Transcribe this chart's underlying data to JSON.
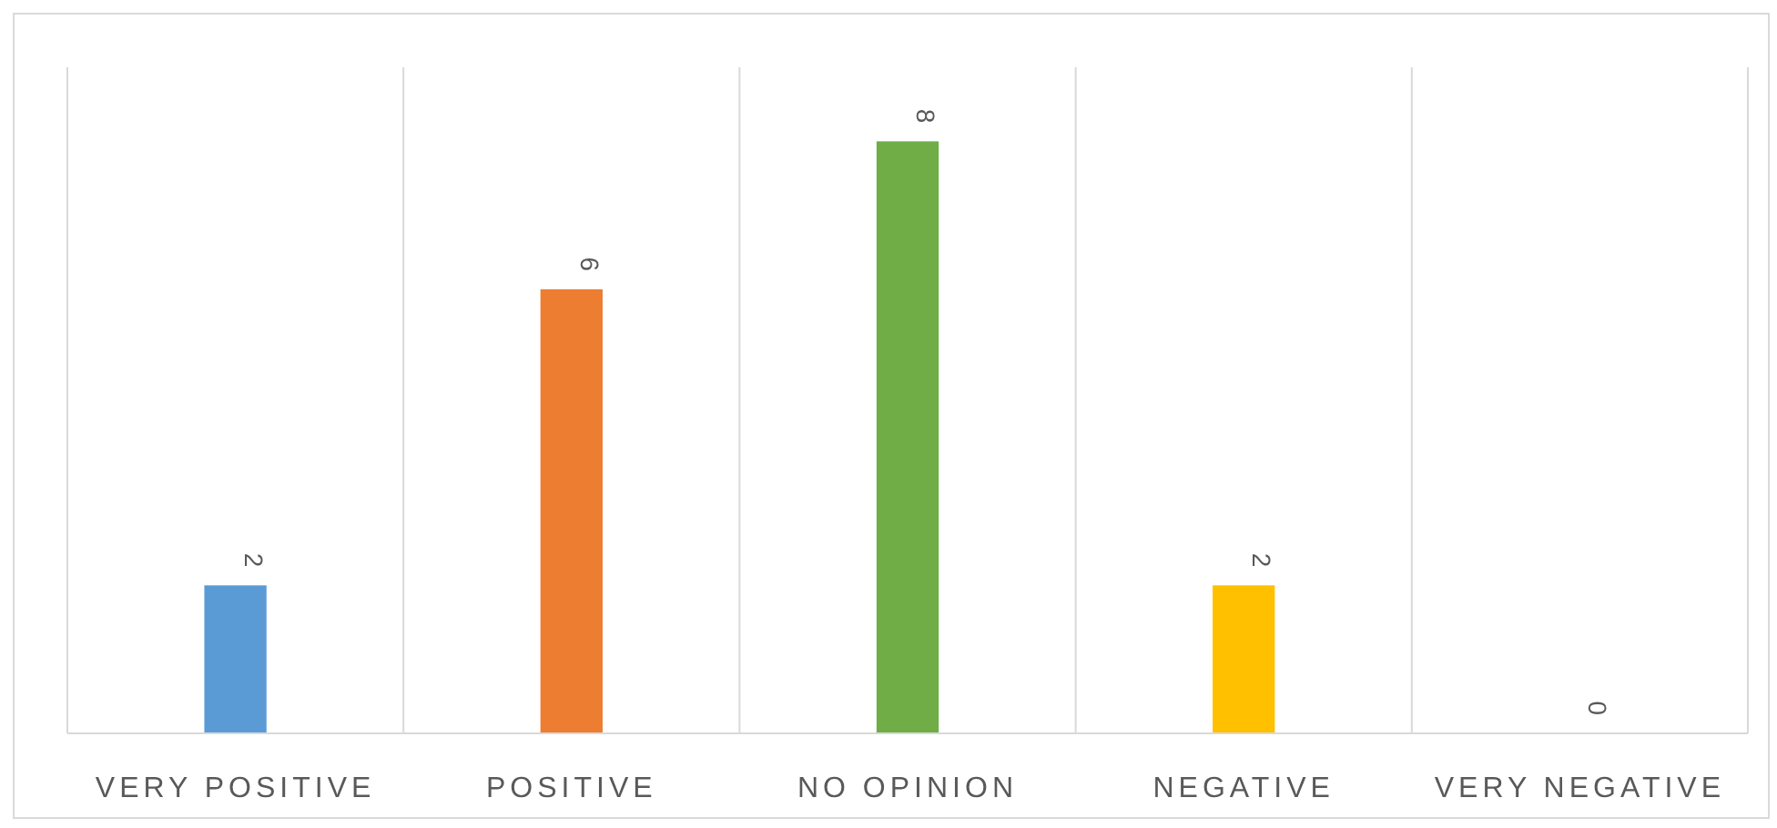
{
  "chart_data": {
    "type": "bar",
    "categories": [
      "VERY POSITIVE",
      "POSITIVE",
      "NO OPINION",
      "NEGATIVE",
      "VERY NEGATIVE"
    ],
    "values": [
      2,
      6,
      8,
      2,
      0
    ],
    "colors": [
      "#5b9bd5",
      "#ed7d31",
      "#70ad47",
      "#ffc000",
      "#4472c4"
    ],
    "ylim": [
      0,
      9
    ],
    "data_labels": true,
    "grid": "x",
    "tick_labels": "x"
  }
}
